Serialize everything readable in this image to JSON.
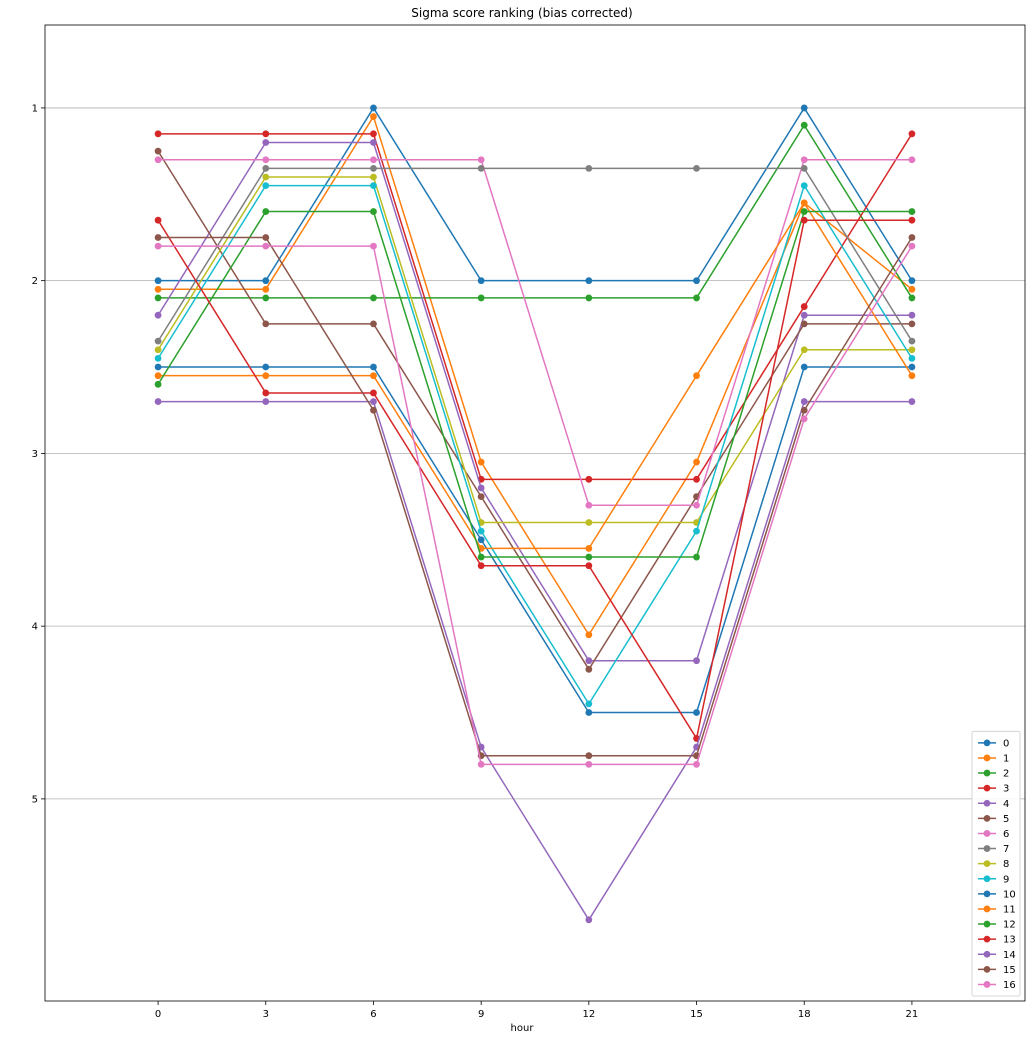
{
  "chart_data": {
    "type": "line",
    "title": "Sigma score ranking (bias corrected)",
    "xlabel": "hour",
    "ylabel": "",
    "x": [
      0,
      3,
      6,
      9,
      12,
      15,
      18,
      21
    ],
    "xlim": [
      -3.15,
      24.15
    ],
    "ylim": [
      6.17,
      0.52
    ],
    "y_inverted": true,
    "yticks": [
      1,
      2,
      3,
      4,
      5
    ],
    "grid": "horizontal",
    "legend_position": "lower right",
    "series": [
      {
        "name": "0",
        "color": "#1f77b4",
        "values": [
          2.0,
          2.0,
          1.0,
          2.0,
          2.0,
          2.0,
          1.0,
          2.0
        ]
      },
      {
        "name": "1",
        "color": "#ff7f0e",
        "values": [
          2.05,
          2.05,
          1.05,
          3.05,
          4.05,
          3.05,
          1.55,
          2.05
        ]
      },
      {
        "name": "2",
        "color": "#2ca02c",
        "values": [
          2.1,
          2.1,
          2.1,
          2.1,
          2.1,
          2.1,
          1.1,
          2.1
        ]
      },
      {
        "name": "3",
        "color": "#d62728",
        "values": [
          1.15,
          1.15,
          1.15,
          3.15,
          3.15,
          3.15,
          2.15,
          1.15
        ]
      },
      {
        "name": "4",
        "color": "#9467bd",
        "values": [
          2.2,
          1.2,
          1.2,
          3.2,
          4.2,
          4.2,
          2.2,
          2.2
        ]
      },
      {
        "name": "5",
        "color": "#8c564b",
        "values": [
          1.25,
          2.25,
          2.25,
          3.25,
          4.25,
          3.25,
          2.25,
          2.25
        ]
      },
      {
        "name": "6",
        "color": "#e377c2",
        "values": [
          1.3,
          1.3,
          1.3,
          1.3,
          3.3,
          3.3,
          1.3,
          1.3
        ]
      },
      {
        "name": "7",
        "color": "#7f7f7f",
        "values": [
          2.35,
          1.35,
          1.35,
          1.35,
          1.35,
          1.35,
          1.35,
          2.35
        ]
      },
      {
        "name": "8",
        "color": "#bcbd22",
        "values": [
          2.4,
          1.4,
          1.4,
          3.4,
          3.4,
          3.4,
          2.4,
          2.4
        ]
      },
      {
        "name": "9",
        "color": "#17becf",
        "values": [
          2.45,
          1.45,
          1.45,
          3.45,
          4.45,
          3.45,
          1.45,
          2.45
        ]
      },
      {
        "name": "10",
        "color": "#1f77b4",
        "values": [
          2.5,
          2.5,
          2.5,
          3.5,
          4.5,
          4.5,
          2.5,
          2.5
        ]
      },
      {
        "name": "11",
        "color": "#ff7f0e",
        "values": [
          2.55,
          2.55,
          2.55,
          3.55,
          3.55,
          2.55,
          1.55,
          2.55
        ]
      },
      {
        "name": "12",
        "color": "#2ca02c",
        "values": [
          2.6,
          1.6,
          1.6,
          3.6,
          3.6,
          3.6,
          1.6,
          1.6
        ]
      },
      {
        "name": "13",
        "color": "#d62728",
        "values": [
          1.65,
          2.65,
          2.65,
          3.65,
          3.65,
          4.65,
          1.65,
          1.65
        ]
      },
      {
        "name": "14",
        "color": "#9467bd",
        "values": [
          2.7,
          2.7,
          2.7,
          4.7,
          5.7,
          4.7,
          2.7,
          2.7
        ]
      },
      {
        "name": "15",
        "color": "#8c564b",
        "values": [
          1.75,
          1.75,
          2.75,
          4.75,
          4.75,
          4.75,
          2.75,
          1.75
        ]
      },
      {
        "name": "16",
        "color": "#e377c2",
        "values": [
          1.8,
          1.8,
          1.8,
          4.8,
          4.8,
          4.8,
          2.8,
          1.8
        ]
      }
    ]
  }
}
